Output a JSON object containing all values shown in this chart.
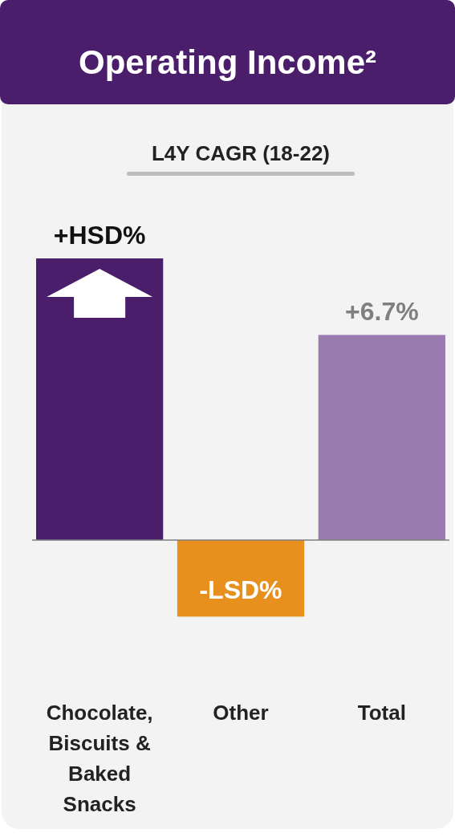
{
  "chart_data": {
    "type": "bar",
    "title": "Operating Income²",
    "subtitle": "L4Y CAGR (18-22)",
    "categories": [
      "Chocolate, Biscuits & Baked Snacks",
      "Other",
      "Total"
    ],
    "values": [
      9.2,
      -2.5,
      6.7
    ],
    "colors": [
      "#4b1e6b",
      "#e8901e",
      "#9a7bb0"
    ],
    "value_labels": [
      "+HSD%",
      "-LSD%",
      "+6.7%"
    ]
  }
}
